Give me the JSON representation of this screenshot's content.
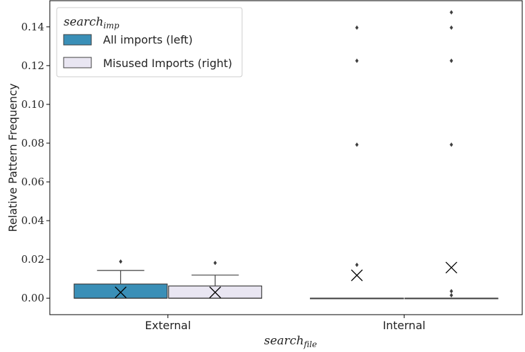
{
  "chart_data": {
    "type": "box",
    "xlabel": {
      "main": "search",
      "sub": "file"
    },
    "ylabel": "Relative Pattern Frequency",
    "ylim": [
      -0.0085,
      0.1535
    ],
    "yticks": [
      "0.00",
      "0.02",
      "0.04",
      "0.06",
      "0.08",
      "0.10",
      "0.12",
      "0.14"
    ],
    "categories": [
      "External",
      "Internal"
    ],
    "legend": {
      "title": {
        "main": "search",
        "sub": "imp"
      },
      "placement": "top-left"
    },
    "series": [
      {
        "name": "All imports (left)",
        "color": "#3a8fb7",
        "boxes": [
          {
            "category": "External",
            "q1": 0.0,
            "median": 0.0,
            "q3": 0.0073,
            "whisker_low": 0.0,
            "whisker_high": 0.0143,
            "mean": 0.003,
            "outliers": [
              0.0189
            ]
          },
          {
            "category": "Internal",
            "q1": 0.0,
            "median": 0.0,
            "q3": 0.0,
            "whisker_low": 0.0,
            "whisker_high": 0.0,
            "mean": 0.0118,
            "outliers": [
              0.0172,
              0.0792,
              0.1225,
              0.1396
            ]
          }
        ]
      },
      {
        "name": "Misused Imports (right)",
        "color": "#e9e6f2",
        "boxes": [
          {
            "category": "External",
            "q1": 0.0,
            "median": 0.0,
            "q3": 0.0063,
            "whisker_low": 0.0,
            "whisker_high": 0.0119,
            "mean": 0.003,
            "outliers": [
              0.0182
            ]
          },
          {
            "category": "Internal",
            "q1": 0.0,
            "median": 0.0,
            "q3": 0.0,
            "whisker_low": 0.0,
            "whisker_high": 0.0,
            "mean": 0.0158,
            "outliers": [
              0.0015,
              0.0036,
              0.0792,
              0.1225,
              0.1396,
              0.1475
            ]
          }
        ]
      }
    ]
  }
}
